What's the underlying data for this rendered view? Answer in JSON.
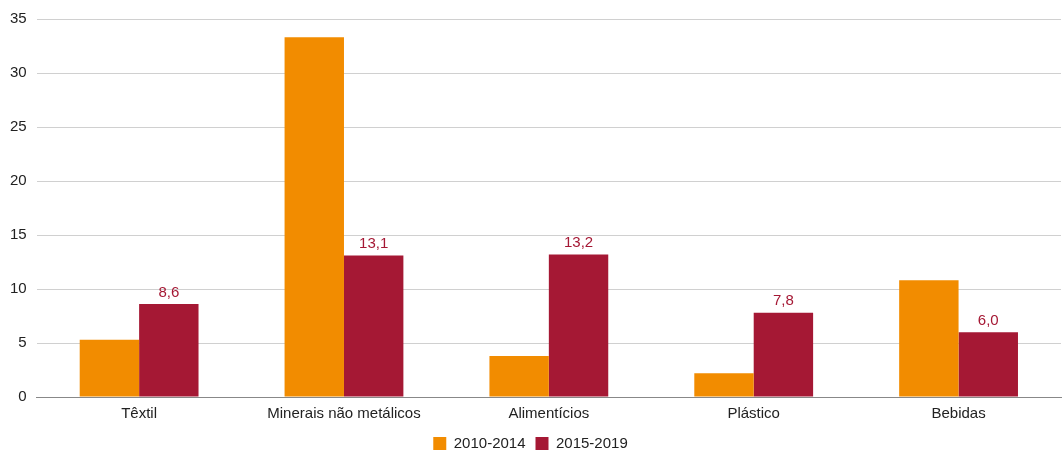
{
  "chart_data": {
    "type": "bar",
    "categories": [
      "Têxtil",
      "Minerais não metálicos",
      "Alimentícios",
      "Plástico",
      "Bebidas"
    ],
    "series": [
      {
        "name": "2010-2014",
        "color": "#f28c00",
        "values": [
          5.3,
          33.3,
          3.8,
          2.2,
          10.8
        ]
      },
      {
        "name": "2015-2019",
        "color": "#a51834",
        "values": [
          8.6,
          13.1,
          13.2,
          7.8,
          6.0
        ],
        "value_labels": [
          "8,6",
          "13,1",
          "13,2",
          "7,8",
          "6,0"
        ]
      }
    ],
    "ylim": [
      0,
      35
    ],
    "yticks": [
      0,
      5,
      10,
      15,
      20,
      25,
      30,
      35
    ],
    "grid": "y",
    "legend": "bottom"
  }
}
